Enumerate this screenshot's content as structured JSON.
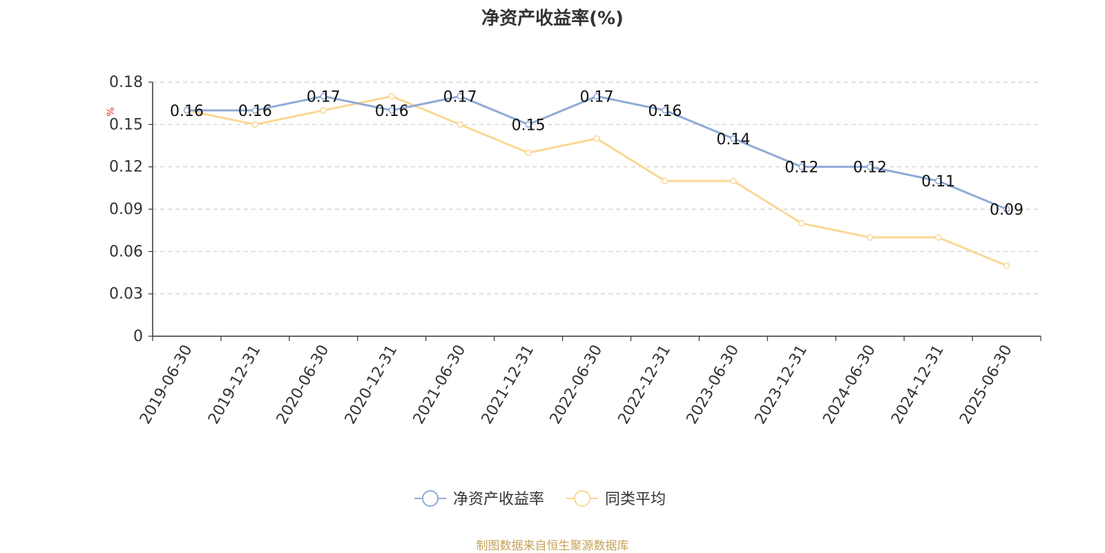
{
  "title": "净资产收益率(%)",
  "source": "制图数据来自恒生聚源数据库",
  "chart_data": {
    "type": "line",
    "title": "净资产收益率(%)",
    "ylabel": "%",
    "ylim": [
      0,
      0.18
    ],
    "yticks": [
      0,
      0.03,
      0.06,
      0.09,
      0.12,
      0.15,
      0.18
    ],
    "grid": true,
    "legend_position": "bottom",
    "categories": [
      "2019-06-30",
      "2019-12-31",
      "2020-06-30",
      "2020-12-31",
      "2021-06-30",
      "2021-12-31",
      "2022-06-30",
      "2022-12-31",
      "2023-06-30",
      "2023-12-31",
      "2024-06-30",
      "2024-12-31",
      "2025-06-30"
    ],
    "series": [
      {
        "name": "净资产收益率",
        "color": "#8eaad6",
        "values": [
          0.16,
          0.16,
          0.17,
          0.16,
          0.17,
          0.15,
          0.17,
          0.16,
          0.14,
          0.12,
          0.12,
          0.11,
          0.09
        ],
        "labels": [
          "0.16",
          "0.16",
          "0.17",
          "0.16",
          "0.17",
          "0.15",
          "0.17",
          "0.16",
          "0.14",
          "0.12",
          "0.12",
          "0.11",
          "0.09"
        ]
      },
      {
        "name": "同类平均",
        "color": "#fbd794",
        "values": [
          0.16,
          0.15,
          0.16,
          0.17,
          0.15,
          0.13,
          0.14,
          0.11,
          0.11,
          0.08,
          0.07,
          0.07,
          0.05
        ]
      }
    ]
  }
}
